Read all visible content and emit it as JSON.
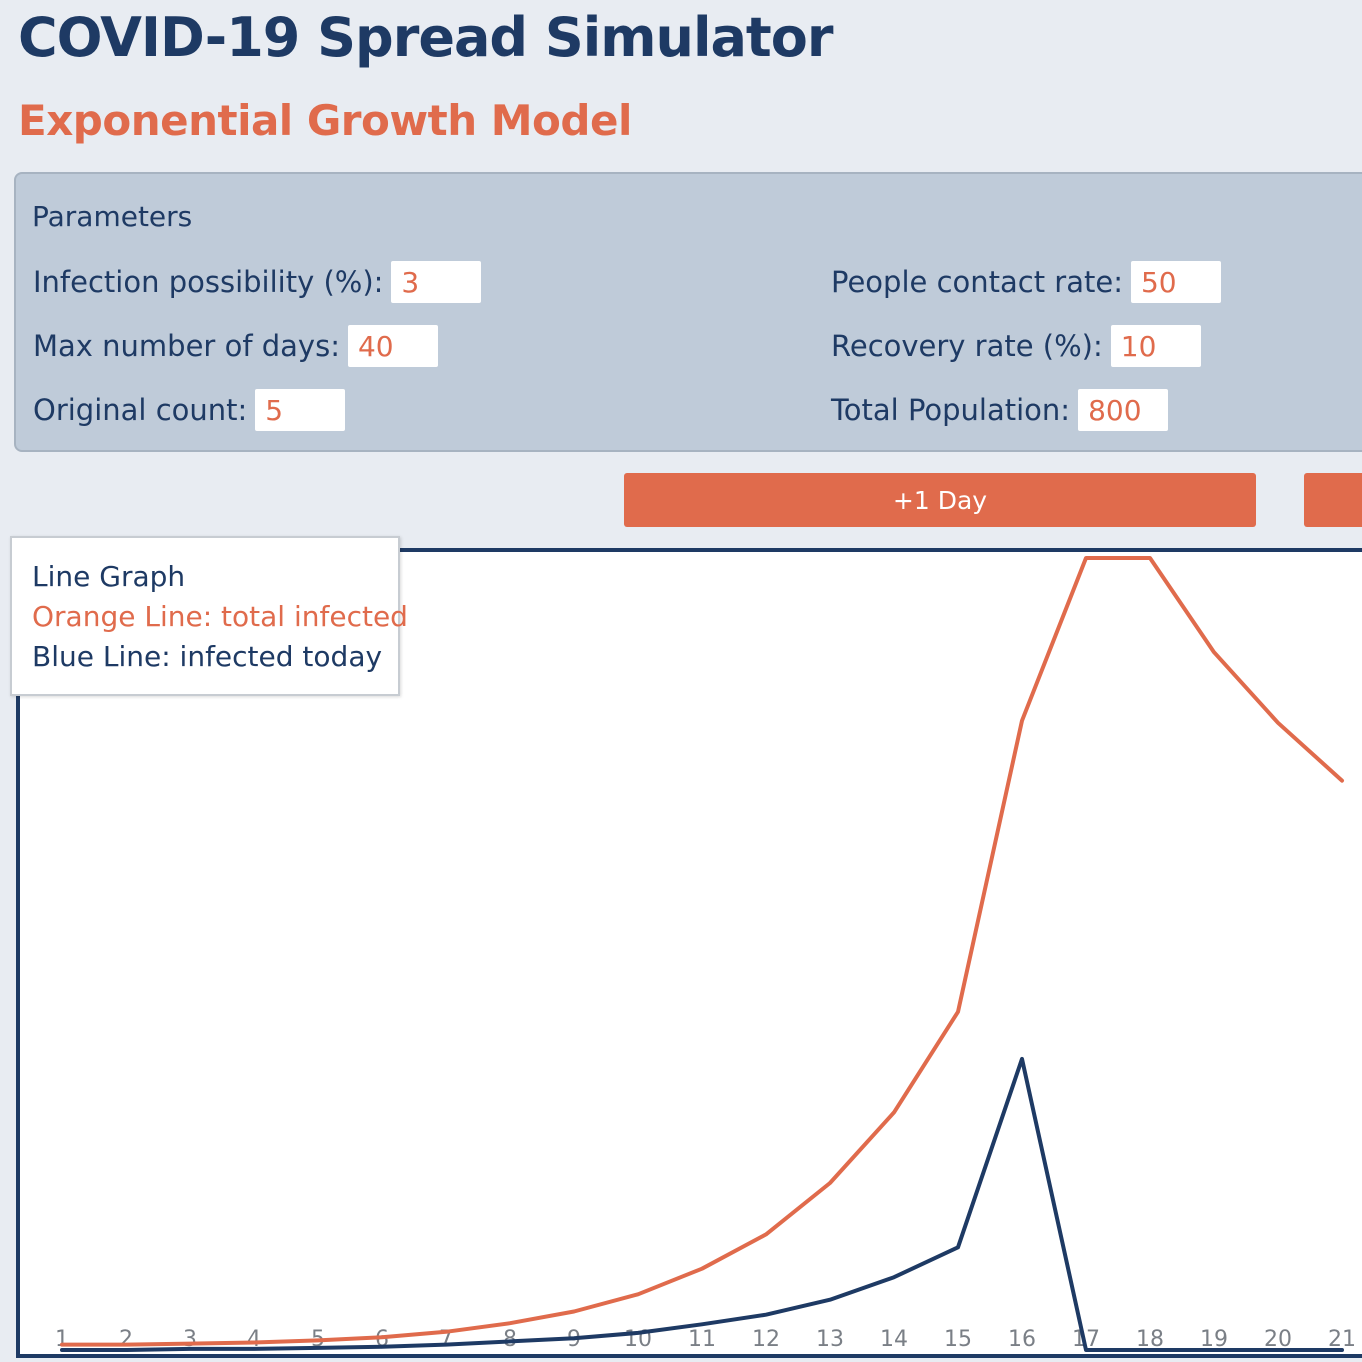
{
  "header": {
    "title": "COVID-19 Spread Simulator",
    "subtitle": "Exponential Growth Model"
  },
  "parameters": {
    "heading": "Parameters",
    "infection_possibility": {
      "label": "Infection possibility (%):",
      "value": "3"
    },
    "max_days": {
      "label": "Max number of days:",
      "value": "40"
    },
    "original_count": {
      "label": "Original count:",
      "value": "5"
    },
    "contact_rate": {
      "label": "People contact rate:",
      "value": "50"
    },
    "recovery_rate": {
      "label": "Recovery rate (%):",
      "value": "10"
    },
    "total_population": {
      "label": "Total Population:",
      "value": "800"
    }
  },
  "controls": {
    "plus_one_day_label": "+1 Day"
  },
  "legend": {
    "title": "Line Graph",
    "orange": "Orange Line: total infected",
    "blue": "Blue Line: infected today"
  },
  "colors": {
    "accent": "#e06b4c",
    "navy": "#1e3a64",
    "panel": "#bfcbd9",
    "background": "#e8ecf2"
  },
  "chart_data": {
    "type": "line",
    "x": [
      1,
      2,
      3,
      4,
      5,
      6,
      7,
      8,
      9,
      10,
      11,
      12,
      13,
      14,
      15,
      16,
      17,
      18,
      19,
      20,
      21
    ],
    "x_tick_labels": [
      "1",
      "2",
      "3",
      "4",
      "5",
      "6",
      "7",
      "8",
      "9",
      "10",
      "11",
      "12",
      "13",
      "14",
      "15",
      "16",
      "17",
      "18",
      "19",
      "20",
      "21"
    ],
    "series": [
      {
        "name": "Orange Line: total infected",
        "color": "#e06b4c",
        "values": [
          5,
          5,
          6,
          7,
          9,
          12,
          17,
          25,
          36,
          52,
          76,
          108,
          156,
          222,
          316,
          588,
          740,
          740,
          652,
          586,
          532
        ]
      },
      {
        "name": "Blue Line: infected today",
        "color": "#1e3a64",
        "values": [
          0,
          0,
          1,
          1,
          2,
          3,
          5,
          8,
          11,
          16,
          24,
          33,
          47,
          68,
          96,
          272,
          0,
          0,
          0,
          0,
          0
        ]
      }
    ],
    "xlabel": "",
    "ylabel": "",
    "xlim": [
      0.5,
      21
    ],
    "ylim": [
      0,
      740
    ],
    "grid": false,
    "legend_position": "top-left"
  }
}
